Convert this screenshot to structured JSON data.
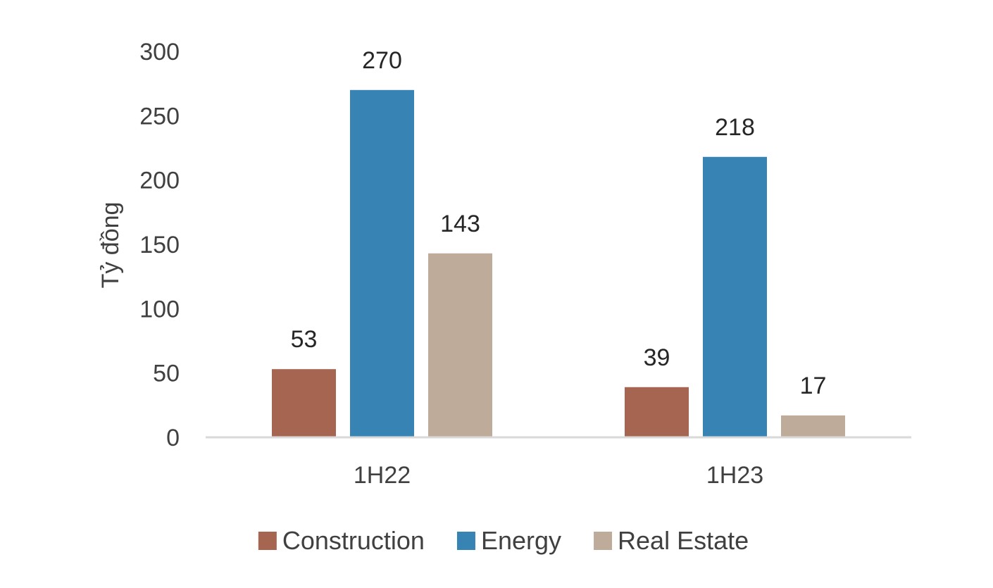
{
  "chart_data": {
    "type": "bar",
    "categories": [
      "1H22",
      "1H23"
    ],
    "series": [
      {
        "name": "Construction",
        "values": [
          53,
          39
        ],
        "color": "#a66551"
      },
      {
        "name": "Energy",
        "values": [
          270,
          218
        ],
        "color": "#3784b4"
      },
      {
        "name": "Real Estate",
        "values": [
          143,
          17
        ],
        "color": "#bfab9a"
      }
    ],
    "title": "",
    "xlabel": "",
    "ylabel": "Tỷ đồng",
    "ylim": [
      0,
      300
    ],
    "yticks": [
      0,
      50,
      100,
      150,
      200,
      250,
      300
    ],
    "grid": false,
    "legend_position": "bottom",
    "axis_color": "#d9d9d9"
  }
}
